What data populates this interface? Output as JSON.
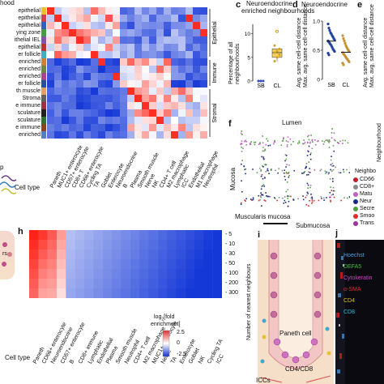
{
  "panel_b": {
    "header_fragment": "hood",
    "row_labels": [
      "epithelial",
      "epithelial",
      "epithelial",
      "ying zone",
      "ithelial IEL",
      "epithelial",
      "er follicle",
      "enriched",
      "enriched",
      "enriched",
      "er follicle",
      "th muscle",
      "Stroma",
      "e immune",
      "sculature",
      "sculature",
      "e immune",
      "enriched"
    ],
    "row_colors": [
      "#e8c030",
      "#d04050",
      "#3060c0",
      "#40a040",
      "#8a50b0",
      "#c03030",
      "#40b0c0",
      "#d08030",
      "#6a8a40",
      "#b04090",
      "#2050a0",
      "#e0a060",
      "#606060",
      "#a03040",
      "#202020",
      "#307030",
      "#904020",
      "#5080c0"
    ],
    "group_labels": [
      "Epithelial",
      "Immune",
      "Stromal"
    ],
    "col_labels": [
      "Paneth",
      "MUC1+ enterocyte",
      "CD57+ enterocyte",
      "CD8+ T",
      "CD66+ enterocyte",
      "Cycling TA",
      "TA",
      "Goblet",
      "Enterocyte",
      "Neuroendocrine",
      "B",
      "Plasma",
      "Smooth muscle",
      "Nerve",
      "NK",
      "CD4+ T cell",
      "M2 macrophage",
      "Lymphatic",
      "ICC",
      "Endothelial",
      "M1 macrophage",
      "Neutrophil"
    ],
    "cell_type_label": "Cell type",
    "left_fragment": "p"
  },
  "panel_c": {
    "letter": "c",
    "title": "Neuroendocrine enriched neighbourhoods",
    "ylabel": "Percentage of all neighbourhoods",
    "chart_data": {
      "type": "box",
      "categories": [
        "SB",
        "CL"
      ],
      "tick_labels": [
        "0",
        "5",
        "10"
      ],
      "ylim": [
        0,
        12
      ],
      "series": [
        {
          "values": [
            0,
            0,
            0,
            0,
            0
          ]
        },
        {
          "values": [
            4.2,
            5.0,
            5.5,
            6.0,
            6.3,
            6.8,
            7.5,
            10.5
          ]
        }
      ]
    }
  },
  "panel_d": {
    "letter": "d",
    "title": "Neuroendocrine",
    "ylabel1": "Avg. same cell-cell distance",
    "ylabel2": "Max. avg. same cell-cell distance",
    "chart_data": {
      "type": "scatter",
      "categories": [
        "SB",
        "CL"
      ],
      "tick_labels": [
        "0",
        "0.5",
        "1.0"
      ],
      "ylim": [
        0,
        1.0
      ],
      "series": [
        {
          "values": [
            0.95,
            0.88,
            0.84,
            0.8,
            0.78,
            0.75,
            0.73,
            0.7,
            0.68,
            0.66,
            0.64,
            0.62,
            0.6,
            0.58,
            0.55,
            0.52,
            0.5,
            0.48,
            0.45,
            0.42
          ]
        },
        {
          "values": [
            0.75,
            0.7,
            0.66,
            0.62,
            0.58,
            0.55,
            0.52,
            0.5,
            0.48,
            0.46,
            0.44,
            0.42,
            0.4,
            0.38,
            0.36,
            0.34,
            0.32,
            0.3,
            0.28,
            0.25
          ]
        }
      ]
    }
  },
  "panel_e": {
    "letter": "e",
    "ylabel1": "Avg. same cell-cell distance",
    "ylabel2": "Max. avg. same cell-cell distance",
    "side_label": "Neighbourhood"
  },
  "panel_f": {
    "letter": "f",
    "lumen": "Lumen",
    "mucosa": "Mucosa",
    "muscularis": "Muscularis mucosa",
    "submucosa": "Submucosa",
    "legend_title": "Neighbo",
    "legend": [
      {
        "label": "CD66",
        "color": "#c0202a"
      },
      {
        "label": "CD8+",
        "color": "#8a8a8a"
      },
      {
        "label": "Matu",
        "color": "#c060c0"
      },
      {
        "label": "Neur",
        "color": "#1a2a80"
      },
      {
        "label": "Secre",
        "color": "#50a040"
      },
      {
        "label": "Smoo",
        "color": "#d83030"
      },
      {
        "label": "Trans",
        "color": "#a030a0"
      }
    ]
  },
  "panel_h": {
    "letter": "h",
    "cell_type_label": "Cell type",
    "col_labels": [
      "Paneth",
      "CD66+ enterocyte",
      "Neuroendocrine",
      "CD57+ enterocyte",
      "B",
      "CD8+ immune",
      "Lymphatic",
      "Endothelial",
      "Plasma",
      "Smooth muscle",
      "Neutrophil",
      "CD4+ T cell",
      "M2 macrophage",
      "MUC1+ enterocyte",
      "Nerve",
      "TA",
      "Enterocyte",
      "Goblet",
      "NK",
      "Cycling TA",
      "ICC"
    ],
    "row_labels": [
      "5",
      "10",
      "30",
      "50",
      "100",
      "200",
      "300"
    ],
    "row_axis_label": "Number of nearest neighbours",
    "colorbar_ticks": [
      "2.5",
      "0",
      "-2.5"
    ],
    "colorbar_label": "log2[fold enrichment]"
  },
  "panel_i": {
    "letter": "i",
    "paneth": "Paneth cell",
    "cd48": "CD4/CD8",
    "bottom": "ICCs"
  },
  "panel_j": {
    "letter": "j",
    "stains": [
      {
        "label": "Hoechst",
        "color": "#4aa0e0"
      },
      {
        "label": "DEFA5",
        "color": "#40c040"
      },
      {
        "label": "Cytokeratin",
        "color": "#d040d0"
      },
      {
        "label": "α-SMA",
        "color": "#e03030"
      },
      {
        "label": "CD4",
        "color": "#e0c020"
      },
      {
        "label": "CD8",
        "color": "#30c0e0"
      }
    ]
  }
}
